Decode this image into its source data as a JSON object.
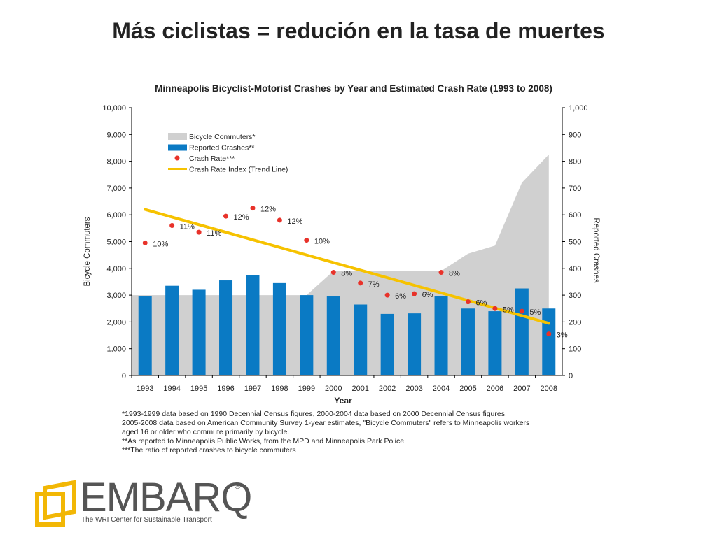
{
  "slide": {
    "title": "Más ciclistas = redución en la tasa de muertes"
  },
  "chart_data": {
    "type": "bar",
    "title": "Minneapolis Bicyclist-Motorist Crashes by Year and Estimated Crash Rate (1993 to 2008)",
    "xlabel": "Year",
    "ylabel_left": "Bicycle Commuters",
    "ylabel_right": "Reported Crashes",
    "ylim_left": [
      0,
      10000
    ],
    "ylim_right": [
      0,
      1000
    ],
    "left_ticks": [
      "0",
      "1,000",
      "2,000",
      "3,000",
      "4,000",
      "5,000",
      "6,000",
      "7,000",
      "8,000",
      "9,000",
      "10,000"
    ],
    "right_ticks": [
      "0",
      "100",
      "200",
      "300",
      "400",
      "500",
      "600",
      "700",
      "800",
      "900",
      "1,000"
    ],
    "categories": [
      "1993",
      "1994",
      "1995",
      "1996",
      "1997",
      "1998",
      "1999",
      "2000",
      "2001",
      "2002",
      "2003",
      "2004",
      "2005",
      "2006",
      "2007",
      "2008"
    ],
    "legend_placement": "top-left",
    "series": [
      {
        "name": "Bicycle Commuters*",
        "type": "area",
        "axis": "left",
        "color": "#d0d0d0",
        "values": [
          3000,
          3000,
          3000,
          3000,
          3000,
          3000,
          3000,
          3900,
          3900,
          3900,
          3900,
          3900,
          4550,
          4850,
          7200,
          8250
        ]
      },
      {
        "name": "Reported Crashes**",
        "type": "bar",
        "axis": "right",
        "color": "#0a7ac4",
        "values": [
          295,
          335,
          320,
          355,
          375,
          345,
          300,
          295,
          265,
          230,
          232,
          295,
          250,
          240,
          325,
          250
        ]
      },
      {
        "name": "Crash Rate***",
        "type": "scatter",
        "axis": "left",
        "color": "#e8322a",
        "values": [
          4950,
          5600,
          5350,
          5950,
          6250,
          5800,
          5050,
          3850,
          3450,
          3000,
          3050,
          3850,
          2750,
          2500,
          2400,
          1550
        ],
        "labels": [
          "10%",
          "11%",
          "11%",
          "12%",
          "12%",
          "12%",
          "10%",
          "8%",
          "7%",
          "6%",
          "6%",
          "8%",
          "6%",
          "5%",
          "5%",
          "3%"
        ]
      },
      {
        "name": "Crash Rate Index (Trend Line)",
        "type": "line",
        "axis": "left",
        "color": "#f6c200",
        "values": [
          6200,
          1950
        ],
        "x": [
          "1993",
          "2008"
        ]
      }
    ]
  },
  "footnotes": {
    "line1": "*1993-1999 data based on 1990 Decennial Census figures, 2000-2004 data based on 2000 Decennial Census figures,",
    "line2": "2005-2008 data based on American Community Survey 1-year estimates, \"Bicycle Commuters\" refers to Minneapolis workers",
    "line3": "aged 16 or older who commute primarily by bicycle.",
    "line4": "**As reported to Minneapolis Public Works, from the MPD and Minneapolis Park Police",
    "line5": "***The ratio of reported crashes to bicycle commuters"
  },
  "logo": {
    "wordmark": "EMBARQ",
    "registered": "®",
    "tagline": "The WRI Center for Sustainable Transport",
    "colors": {
      "frame": "#f2b705",
      "text": "#555555"
    }
  }
}
